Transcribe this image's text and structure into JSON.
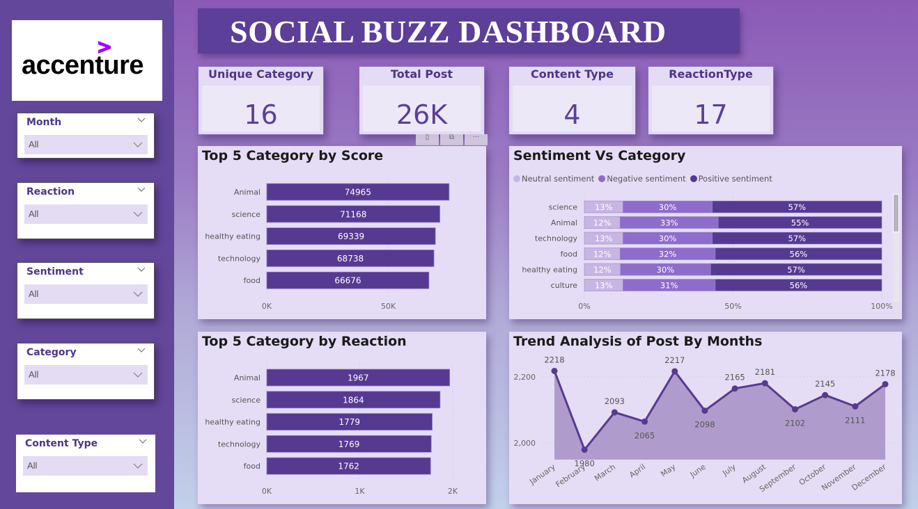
{
  "sidebar": {
    "logo": {
      "text": "accenture",
      "accent_color": "#a100ff"
    },
    "slicers": [
      {
        "title": "Month",
        "value": "All"
      },
      {
        "title": "Reaction",
        "value": "All"
      },
      {
        "title": "Sentiment",
        "value": "All"
      },
      {
        "title": "Category",
        "value": "All"
      },
      {
        "title": "Content Type",
        "value": "All"
      }
    ]
  },
  "header": {
    "title": "SOCIAL BUZZ DASHBOARD"
  },
  "kpis": [
    {
      "label": "Unique Category",
      "value": "16"
    },
    {
      "label": "Total Post",
      "value": "26K"
    },
    {
      "label": "Content Type",
      "value": "4"
    },
    {
      "label": "ReactionType",
      "value": "17"
    }
  ],
  "visual_toolbar": {
    "filter_icon": "filter-icon",
    "focus_icon": "focus-mode-icon",
    "more_icon": "more-options-icon",
    "more_label": "···"
  },
  "colors": {
    "bar": "#563a91",
    "neutral": "#c7b6e4",
    "negative": "#8d6ccb",
    "positive": "#553a91",
    "area": "#ac98c9",
    "line": "#563a91"
  },
  "chart_data": [
    {
      "id": "score",
      "type": "bar",
      "title": "Top 5 Category by Score",
      "categories": [
        "Animal",
        "science",
        "healthy eating",
        "technology",
        "food"
      ],
      "values": [
        74965,
        71168,
        69339,
        68738,
        66676
      ],
      "xticks": [
        "0K",
        "50K"
      ],
      "xlim": [
        0,
        80000
      ],
      "tick_values": [
        0,
        50000
      ]
    },
    {
      "id": "sentiment",
      "type": "bar",
      "stacked": "100%",
      "title": "Sentiment Vs Category",
      "legend": [
        "Neutral sentiment",
        "Negative sentiment",
        "Positive sentiment"
      ],
      "legend_position": "top-left",
      "categories": [
        "science",
        "Animal",
        "technology",
        "food",
        "healthy eating",
        "culture"
      ],
      "series": [
        {
          "name": "Neutral sentiment",
          "values": [
            13,
            12,
            13,
            12,
            12,
            13
          ]
        },
        {
          "name": "Negative sentiment",
          "values": [
            30,
            33,
            30,
            32,
            30,
            31
          ]
        },
        {
          "name": "Positive sentiment",
          "values": [
            57,
            55,
            57,
            56,
            57,
            56
          ]
        }
      ],
      "xticks": [
        "0%",
        "50%",
        "100%"
      ]
    },
    {
      "id": "reaction",
      "type": "bar",
      "title": "Top 5 Category by Reaction",
      "categories": [
        "Animal",
        "science",
        "healthy eating",
        "technology",
        "food"
      ],
      "values": [
        1967,
        1864,
        1779,
        1769,
        1762
      ],
      "xticks": [
        "0K",
        "1K",
        "2K"
      ],
      "xlim": [
        0,
        2000
      ],
      "tick_values": [
        0,
        1000,
        2000
      ]
    },
    {
      "id": "trend",
      "type": "area",
      "title": "Trend Analysis of Post By Months",
      "categories": [
        "January",
        "February",
        "March",
        "April",
        "May",
        "June",
        "July",
        "August",
        "September",
        "October",
        "November",
        "December"
      ],
      "values": [
        2218,
        1980,
        2093,
        2065,
        2217,
        2098,
        2165,
        2181,
        2102,
        2145,
        2111,
        2178
      ],
      "yticks": [
        "2,000",
        "2,200"
      ],
      "tick_values": [
        2000,
        2200
      ],
      "ylim": [
        1950,
        2240
      ]
    }
  ]
}
